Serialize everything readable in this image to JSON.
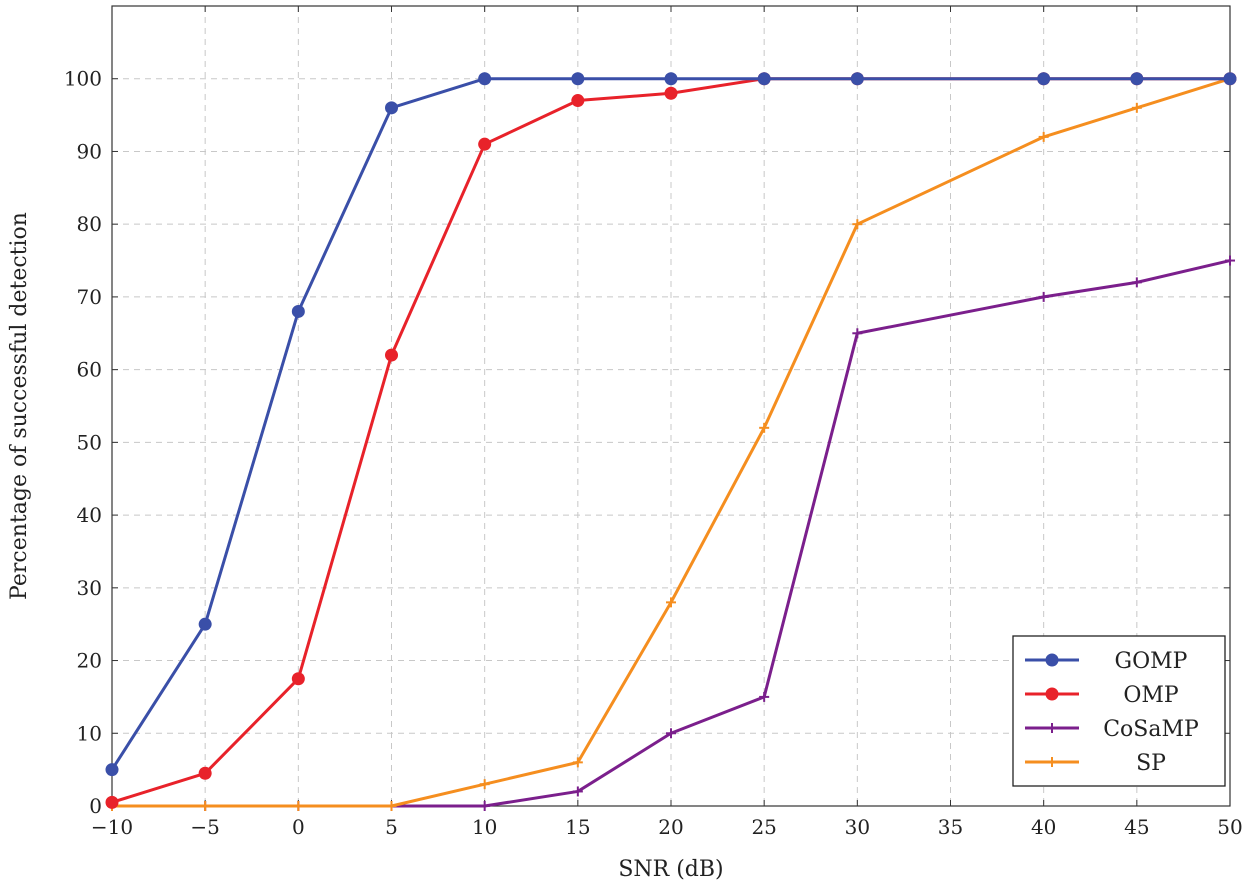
{
  "chart_data": {
    "type": "line",
    "title": "",
    "xlabel": "SNR (dB)",
    "ylabel": "Percentage of successful detection",
    "xlim": [
      -10,
      50
    ],
    "ylim": [
      0,
      110
    ],
    "x_ticks": [
      -10,
      -5,
      0,
      5,
      10,
      15,
      20,
      25,
      30,
      35,
      40,
      45,
      50
    ],
    "x_tick_labels": [
      "−10",
      "−5",
      "0",
      "5",
      "10",
      "15",
      "20",
      "25",
      "30",
      "35",
      "40",
      "45",
      "50"
    ],
    "y_ticks": [
      0,
      10,
      20,
      30,
      40,
      50,
      60,
      70,
      80,
      90,
      100
    ],
    "y_tick_labels": [
      "0",
      "10",
      "20",
      "30",
      "40",
      "50",
      "60",
      "70",
      "80",
      "90",
      "100"
    ],
    "grid": true,
    "legend_position": "bottom-right",
    "series": [
      {
        "name": "GOMP",
        "color": "#3a4fa8",
        "marker": "circle",
        "x": [
          -10,
          -5,
          0,
          5,
          10,
          15,
          20,
          25,
          30,
          40,
          45,
          50
        ],
        "y": [
          5,
          25,
          68,
          96,
          100,
          100,
          100,
          100,
          100,
          100,
          100,
          100
        ]
      },
      {
        "name": "OMP",
        "color": "#e8222a",
        "marker": "circle",
        "x": [
          -10,
          -5,
          0,
          5,
          10,
          15,
          20,
          25,
          30,
          40,
          45,
          50
        ],
        "y": [
          0.5,
          4.5,
          17.5,
          62,
          91,
          97,
          98,
          100,
          100,
          100,
          100,
          100
        ]
      },
      {
        "name": "CoSaMP",
        "color": "#7b1f8c",
        "marker": "plus",
        "x": [
          -10,
          -5,
          0,
          5,
          10,
          15,
          20,
          25,
          30,
          40,
          45,
          50
        ],
        "y": [
          0,
          0,
          0,
          0,
          0,
          2,
          10,
          15,
          65,
          70,
          72,
          75
        ]
      },
      {
        "name": "SP",
        "color": "#f58e1f",
        "marker": "plus",
        "x": [
          -10,
          -5,
          0,
          5,
          10,
          15,
          20,
          25,
          30,
          40,
          45,
          50
        ],
        "y": [
          0,
          0,
          0,
          0,
          3,
          6,
          28,
          52,
          80,
          92,
          96,
          100
        ]
      }
    ]
  }
}
